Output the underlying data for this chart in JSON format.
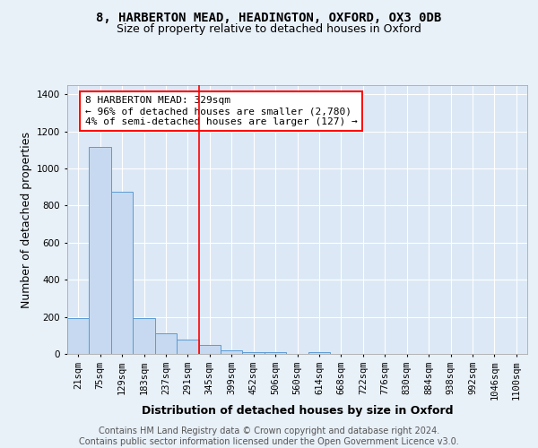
{
  "title_line1": "8, HARBERTON MEAD, HEADINGTON, OXFORD, OX3 0DB",
  "title_line2": "Size of property relative to detached houses in Oxford",
  "xlabel": "Distribution of detached houses by size in Oxford",
  "ylabel": "Number of detached properties",
  "categories": [
    "21sqm",
    "75sqm",
    "129sqm",
    "183sqm",
    "237sqm",
    "291sqm",
    "345sqm",
    "399sqm",
    "452sqm",
    "506sqm",
    "560sqm",
    "614sqm",
    "668sqm",
    "722sqm",
    "776sqm",
    "830sqm",
    "884sqm",
    "938sqm",
    "992sqm",
    "1046sqm",
    "1100sqm"
  ],
  "values": [
    195,
    1115,
    875,
    195,
    110,
    75,
    50,
    20,
    10,
    10,
    0,
    10,
    0,
    0,
    0,
    0,
    0,
    0,
    0,
    0,
    0
  ],
  "bar_color": "#c6d9f0",
  "bar_edge_color": "#5b9bd5",
  "red_line_x": 5.5,
  "annotation_text": "8 HARBERTON MEAD: 329sqm\n← 96% of detached houses are smaller (2,780)\n4% of semi-detached houses are larger (127) →",
  "ylim": [
    0,
    1450
  ],
  "yticks": [
    0,
    200,
    400,
    600,
    800,
    1000,
    1200,
    1400
  ],
  "footer_line1": "Contains HM Land Registry data © Crown copyright and database right 2024.",
  "footer_line2": "Contains public sector information licensed under the Open Government Licence v3.0.",
  "background_color": "#e8f0f8",
  "plot_background": "#dce8f5",
  "title_fontsize": 10,
  "subtitle_fontsize": 9,
  "axis_label_fontsize": 9,
  "tick_fontsize": 7.5,
  "annotation_fontsize": 8,
  "footer_fontsize": 7
}
